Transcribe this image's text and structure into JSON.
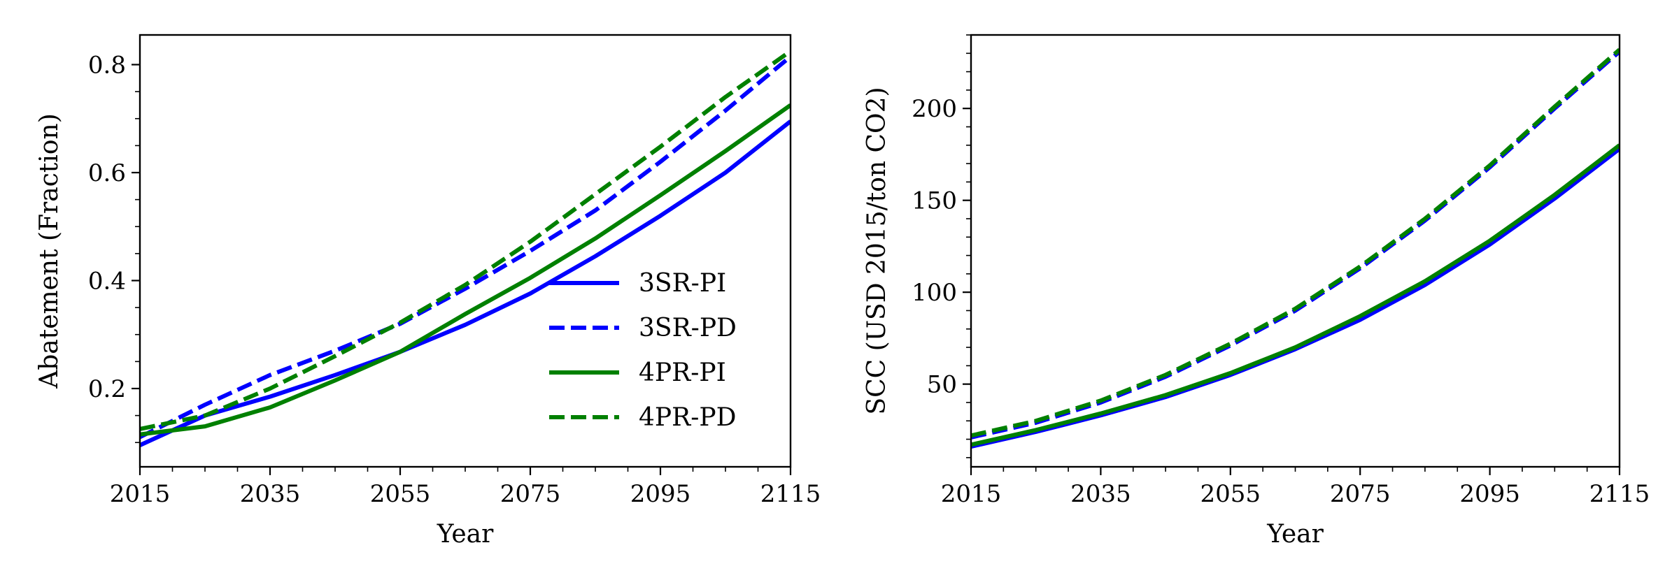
{
  "colors": {
    "blue": "#0000ff",
    "green": "#008000"
  },
  "chart_data": [
    {
      "type": "line",
      "xlabel": "Year",
      "ylabel": "Abatement (Fraction)",
      "xlim": [
        2015,
        2115
      ],
      "ylim": [
        0.055,
        0.855
      ],
      "xticks": [
        2015,
        2035,
        2055,
        2075,
        2095,
        2115
      ],
      "yticks": [
        0.2,
        0.4,
        0.6,
        0.8
      ],
      "yticks_minor": [
        0.1,
        0.15,
        0.25,
        0.3,
        0.35,
        0.45,
        0.5,
        0.55,
        0.65,
        0.7,
        0.75
      ],
      "legend": "lower-right",
      "x": [
        2015,
        2025,
        2035,
        2045,
        2055,
        2065,
        2075,
        2085,
        2095,
        2105,
        2115
      ],
      "series": [
        {
          "name": "3SR-PI",
          "color": "#0000ff",
          "dash": "solid",
          "values": [
            0.095,
            0.15,
            0.185,
            0.225,
            0.268,
            0.318,
            0.376,
            0.445,
            0.52,
            0.6,
            0.695
          ]
        },
        {
          "name": "3SR-PD",
          "color": "#0000ff",
          "dash": "dashed",
          "values": [
            0.11,
            0.17,
            0.225,
            0.27,
            0.32,
            0.385,
            0.455,
            0.53,
            0.62,
            0.715,
            0.815
          ]
        },
        {
          "name": "4PR-PI",
          "color": "#008000",
          "dash": "solid",
          "values": [
            0.115,
            0.13,
            0.165,
            0.215,
            0.268,
            0.338,
            0.405,
            0.478,
            0.558,
            0.64,
            0.725
          ]
        },
        {
          "name": "4PR-PD",
          "color": "#008000",
          "dash": "dashed",
          "values": [
            0.125,
            0.15,
            0.2,
            0.26,
            0.322,
            0.392,
            0.472,
            0.56,
            0.648,
            0.74,
            0.825
          ]
        }
      ]
    },
    {
      "type": "line",
      "xlabel": "Year",
      "ylabel": "SCC (USD 2015/ton CO2)",
      "xlim": [
        2015,
        2115
      ],
      "ylim": [
        5,
        240
      ],
      "xticks": [
        2015,
        2035,
        2055,
        2075,
        2095,
        2115
      ],
      "yticks": [
        50,
        100,
        150,
        200
      ],
      "yticks_minor": [
        10,
        20,
        30,
        40,
        60,
        70,
        80,
        90,
        110,
        120,
        130,
        140,
        160,
        170,
        180,
        190,
        210,
        220,
        230,
        240
      ],
      "x": [
        2015,
        2025,
        2035,
        2045,
        2055,
        2065,
        2075,
        2085,
        2095,
        2105,
        2115
      ],
      "series": [
        {
          "name": "3SR-PI",
          "color": "#0000ff",
          "dash": "solid",
          "values": [
            16,
            24,
            33,
            43,
            55,
            69,
            85,
            104,
            126,
            151,
            178
          ]
        },
        {
          "name": "3SR-PD",
          "color": "#0000ff",
          "dash": "dashed",
          "values": [
            21,
            29,
            40,
            54,
            71,
            90,
            113,
            139,
            168,
            200,
            231
          ]
        },
        {
          "name": "4PR-PI",
          "color": "#008000",
          "dash": "solid",
          "values": [
            17,
            25,
            34,
            44,
            56,
            70,
            87,
            106,
            128,
            153,
            180
          ]
        },
        {
          "name": "4PR-PD",
          "color": "#008000",
          "dash": "dashed",
          "values": [
            22,
            30,
            41,
            55,
            72,
            91,
            114,
            140,
            169,
            201,
            232
          ]
        }
      ]
    }
  ]
}
